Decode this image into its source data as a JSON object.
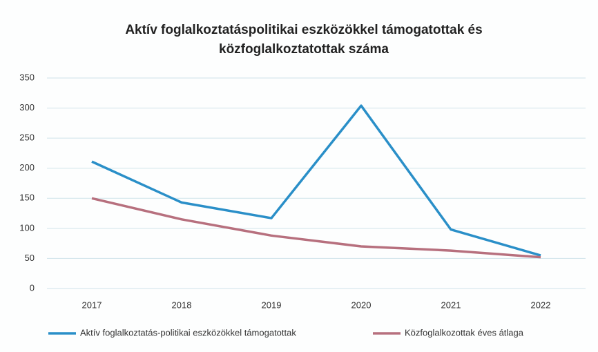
{
  "chart_data": {
    "type": "line",
    "title": "Aktív foglalkoztatáspolitikai eszközökkel támogatottak és közfoglalkoztatottak száma",
    "categories": [
      "2017",
      "2018",
      "2019",
      "2020",
      "2021",
      "2022"
    ],
    "series": [
      {
        "name": "Aktív foglalkoztatás-politikai eszközökkel támogatottak",
        "color": "#2a8fc8",
        "values": [
          211,
          143,
          117,
          304,
          98,
          55
        ]
      },
      {
        "name": "Közfoglalkozottak éves átlaga",
        "color": "#b7707e",
        "values": [
          150,
          115,
          88,
          70,
          63,
          52
        ]
      }
    ],
    "ylim": [
      0,
      350
    ],
    "yticks": [
      0,
      50,
      100,
      150,
      200,
      250,
      300,
      350
    ],
    "grid": true,
    "legend": "bottom"
  }
}
